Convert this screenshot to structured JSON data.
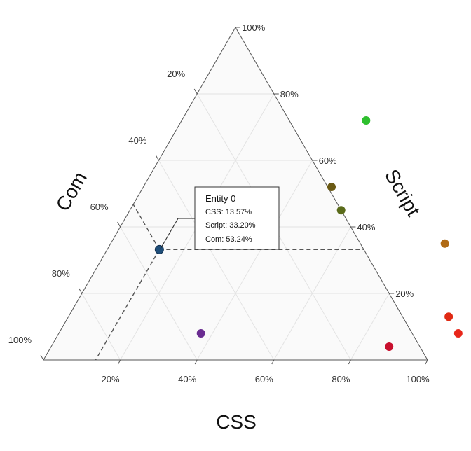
{
  "chart_data": {
    "type": "scatter",
    "plot_kind": "ternary",
    "axes": {
      "css": {
        "title": "CSS",
        "ticks": [
          "20%",
          "40%",
          "60%",
          "80%",
          "100%"
        ]
      },
      "script": {
        "title": "Script",
        "ticks": [
          "20%",
          "40%",
          "60%",
          "80%",
          "100%"
        ]
      },
      "com": {
        "title": "Com",
        "ticks": [
          "20%",
          "40%",
          "60%",
          "80%",
          "100%"
        ]
      }
    },
    "grid": true,
    "points": [
      {
        "css": 0.1357,
        "script": 0.332,
        "com": 0.5324,
        "color": "#1f4e79"
      },
      {
        "css": 0.37,
        "script": 0.08,
        "com": 0.55,
        "color": "#6a2c91"
      },
      {
        "css": 0.48,
        "script": 0.72,
        "com": -0.2,
        "color": "#2ebf2e"
      },
      {
        "css": 0.49,
        "script": 0.52,
        "com": -0.01,
        "color": "#6b5a14"
      },
      {
        "css": 0.55,
        "script": 0.45,
        "com": 0.0,
        "color": "#5a6b1a"
      },
      {
        "css": 0.87,
        "script": 0.35,
        "com": -0.22,
        "color": "#b06a14"
      },
      {
        "css": 0.88,
        "script": 0.04,
        "com": 0.08,
        "color": "#c8102e"
      },
      {
        "css": 0.99,
        "script": 0.13,
        "com": -0.12,
        "color": "#e02a14"
      },
      {
        "css": 1.04,
        "script": 0.08,
        "com": -0.12,
        "color": "#e8261a"
      }
    ],
    "tooltip": {
      "title": "Entity 0",
      "lines": [
        "CSS: 13.57%",
        "Script: 33.20%",
        "Com: 53.24%"
      ]
    }
  }
}
